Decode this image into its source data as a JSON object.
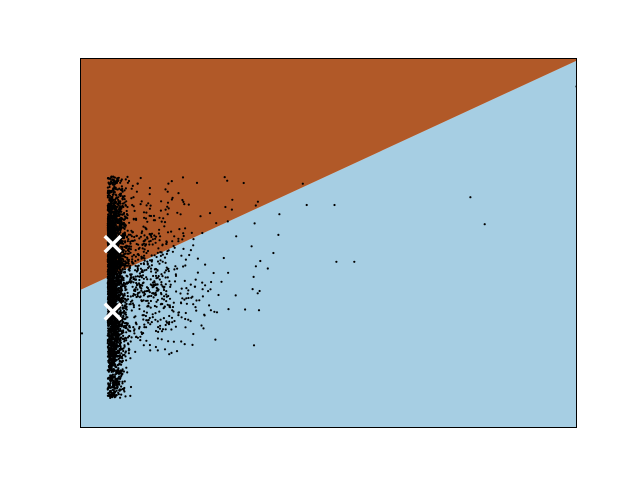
{
  "chart_data": {
    "type": "scatter",
    "title": "",
    "xlabel": "",
    "ylabel": "",
    "xlim": [
      0,
      100
    ],
    "ylim": [
      0,
      100
    ],
    "axis_ticks": "none",
    "grid": false,
    "legend": "none",
    "decision_regions": {
      "boundary_line": {
        "x": [
          0,
          100
        ],
        "y": [
          37.3,
          99.4
        ]
      },
      "above_color": "#b15928",
      "below_color": "#a6cee3"
    },
    "centroids": [
      {
        "x": 6.5,
        "y": 49.7
      },
      {
        "x": 6.5,
        "y": 31.4
      }
    ],
    "centroid_marker": "x",
    "centroid_color": "#ffffff",
    "points_color": "#000000",
    "point_clusters": [
      {
        "cx": 6.5,
        "cy": 50,
        "sx": 1.3,
        "sy": 8.5,
        "n": 1500
      },
      {
        "cx": 6.5,
        "cy": 27,
        "sx": 1.3,
        "sy": 10,
        "n": 1400
      },
      {
        "cx": 11,
        "cy": 45,
        "sx": 5,
        "sy": 10,
        "n": 450
      },
      {
        "cx": 13,
        "cy": 36,
        "sx": 6,
        "sy": 7,
        "n": 350
      },
      {
        "cx": 22,
        "cy": 50,
        "sx": 9,
        "sy": 12,
        "n": 60
      }
    ],
    "outlier_points": [
      {
        "x": 100,
        "y": 92.4
      },
      {
        "x": 78.6,
        "y": 62.4
      },
      {
        "x": 81.5,
        "y": 55.1
      },
      {
        "x": 51.2,
        "y": 60.3
      },
      {
        "x": 45.6,
        "y": 60.3
      },
      {
        "x": 39.9,
        "y": 52.2
      },
      {
        "x": 51.6,
        "y": 44.9
      },
      {
        "x": 55.2,
        "y": 44.9
      },
      {
        "x": 34.9,
        "y": 40.8
      },
      {
        "x": 34.7,
        "y": 37.5
      },
      {
        "x": 36.1,
        "y": 37.0
      },
      {
        "x": 31.3,
        "y": 35.8
      },
      {
        "x": 38.9,
        "y": 47.3
      },
      {
        "x": 34.5,
        "y": 49.1
      },
      {
        "x": 0.3,
        "y": 25.5
      },
      {
        "x": 21.1,
        "y": 29.4
      },
      {
        "x": 35.1,
        "y": 55.3
      },
      {
        "x": 30.6,
        "y": 61.7
      },
      {
        "x": 40.1,
        "y": 57.8
      },
      {
        "x": 26.1,
        "y": 58.1
      },
      {
        "x": 20.3,
        "y": 23.3
      }
    ]
  }
}
